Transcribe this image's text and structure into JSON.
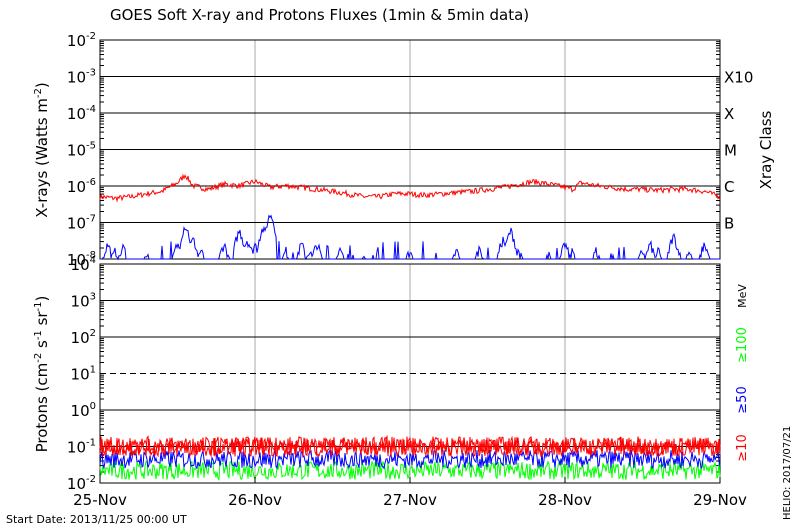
{
  "title": "GOES Soft X-ray and Protons Fluxes   (1min & 5min data)",
  "start_date": "Start Date: 2013/11/25 00:00 UT",
  "credit": "HELIO: 2017/07/21",
  "colors": {
    "xray_long": "#ff0000",
    "xray_short": "#0000ff",
    "p10": "#ff0000",
    "p50": "#0000ff",
    "p100": "#00ff00",
    "grid": "#000000",
    "day_lines": "#aaaaaa"
  },
  "chart_data": [
    {
      "type": "line",
      "panel": "xrays",
      "ylabel": "X-rays (Watts m^-2)",
      "y2label": "Xray Class",
      "yscale": "log",
      "ylim": [
        1e-08,
        0.01
      ],
      "yticks": [
        {
          "base": "10",
          "exp": "-2"
        },
        {
          "base": "10",
          "exp": "-3"
        },
        {
          "base": "10",
          "exp": "-4"
        },
        {
          "base": "10",
          "exp": "-5"
        },
        {
          "base": "10",
          "exp": "-6"
        },
        {
          "base": "10",
          "exp": "-7"
        },
        {
          "base": "10",
          "exp": "-8"
        }
      ],
      "classes": [
        "X10",
        "X",
        "M",
        "C",
        "B"
      ],
      "x_ticks": [
        "25-Nov",
        "26-Nov",
        "27-Nov",
        "28-Nov",
        "29-Nov"
      ],
      "xlim_days": [
        0,
        4
      ],
      "series": [
        {
          "color": "xray_long",
          "x": [
            0,
            0.1,
            0.2,
            0.3,
            0.4,
            0.5,
            0.55,
            0.6,
            0.7,
            0.8,
            0.9,
            1.0,
            1.1,
            1.2,
            1.3,
            1.4,
            1.5,
            1.6,
            1.7,
            1.8,
            1.9,
            2.0,
            2.1,
            2.2,
            2.3,
            2.4,
            2.5,
            2.6,
            2.7,
            2.8,
            2.9,
            3.0,
            3.05,
            3.1,
            3.2,
            3.3,
            3.4,
            3.5,
            3.6,
            3.7,
            3.8,
            3.9,
            4.0
          ],
          "values": [
            5e-07,
            4.5e-07,
            5e-07,
            6e-07,
            7e-07,
            1.2e-06,
            2e-06,
            1e-06,
            8e-07,
            1.1e-06,
            1e-06,
            1.3e-06,
            9e-07,
            1e-06,
            9e-07,
            8e-07,
            7e-07,
            6e-07,
            5e-07,
            5e-07,
            6e-07,
            6e-07,
            5.5e-07,
            6e-07,
            6.5e-07,
            7e-07,
            8e-07,
            9e-07,
            1.1e-06,
            1.3e-06,
            1.1e-06,
            9e-07,
            8e-07,
            1.2e-06,
            1e-06,
            9e-07,
            8e-07,
            8e-07,
            7.5e-07,
            8e-07,
            8e-07,
            7e-07,
            5e-07
          ]
        },
        {
          "color": "xray_short",
          "x": [
            0.05,
            0.1,
            0.15,
            0.3,
            0.5,
            0.55,
            0.6,
            0.65,
            0.8,
            0.9,
            0.95,
            1.0,
            1.05,
            1.1,
            1.2,
            1.3,
            1.35,
            1.4,
            1.55,
            1.7,
            2.0,
            2.3,
            2.45,
            2.6,
            2.65,
            2.7,
            2.9,
            3.0,
            3.05,
            3.2,
            3.3,
            3.5,
            3.55,
            3.6,
            3.7,
            3.8,
            3.9
          ],
          "values": [
            3e-08,
            2e-08,
            2.5e-08,
            1.5e-08,
            3e-08,
            1e-07,
            4e-08,
            2e-08,
            3e-08,
            7e-08,
            4e-08,
            3e-08,
            8e-08,
            2e-07,
            2e-08,
            3e-08,
            2e-08,
            3e-08,
            2e-08,
            1.5e-08,
            2e-08,
            2e-08,
            2.5e-08,
            4e-08,
            7e-08,
            2e-08,
            2e-08,
            3e-08,
            2e-08,
            2e-08,
            1.5e-08,
            2e-08,
            3e-08,
            2e-08,
            5e-08,
            2e-08,
            3e-08
          ]
        }
      ]
    },
    {
      "type": "line",
      "panel": "protons",
      "ylabel": "Protons (cm^-2 s^-1 sr^-1)",
      "y2label": "MeV",
      "yscale": "log",
      "ylim": [
        0.01,
        10000
      ],
      "yticks": [
        {
          "base": "10",
          "exp": "4"
        },
        {
          "base": "10",
          "exp": "3"
        },
        {
          "base": "10",
          "exp": "2"
        },
        {
          "base": "10",
          "exp": "1"
        },
        {
          "base": "10",
          "exp": "0"
        },
        {
          "base": "10",
          "exp": "-1"
        },
        {
          "base": "10",
          "exp": "-2"
        }
      ],
      "threshold": 10,
      "x_ticks": [
        "25-Nov",
        "26-Nov",
        "27-Nov",
        "28-Nov",
        "29-Nov"
      ],
      "xlim_days": [
        0,
        4
      ],
      "series": [
        {
          "name": "≥10",
          "color": "p10",
          "typical": 0.1
        },
        {
          "name": "≥50",
          "color": "p50",
          "typical": 0.045
        },
        {
          "name": "≥100",
          "color": "p100",
          "typical": 0.022
        }
      ]
    }
  ]
}
